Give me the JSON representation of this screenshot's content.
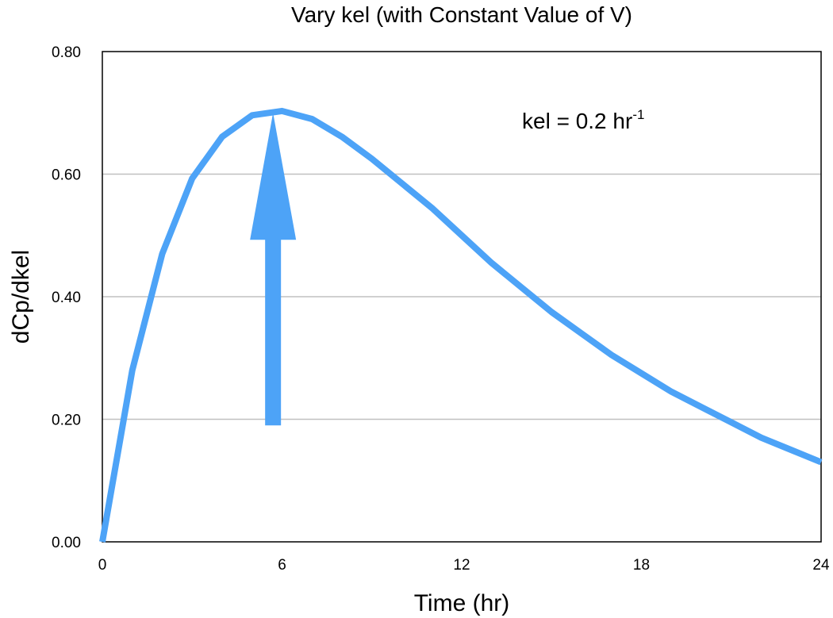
{
  "chart_data": {
    "type": "line",
    "title": "Vary kel (with Constant Value of V)",
    "xlabel": "Time (hr)",
    "ylabel": "dCp/dkel",
    "xlim": [
      0,
      24
    ],
    "ylim": [
      0,
      0.8
    ],
    "xticks": [
      0,
      6,
      12,
      18,
      24
    ],
    "xtick_labels": [
      "0",
      "6",
      "12",
      "18",
      "24"
    ],
    "yticks": [
      0,
      0.2,
      0.4,
      0.6,
      0.8
    ],
    "ytick_labels": [
      "0.00",
      "0.20",
      "0.40",
      "0.60",
      "0.80"
    ],
    "grid": "horizontal",
    "legend": "none",
    "series": [
      {
        "color": "#4da3f7",
        "x": [
          0,
          1,
          2,
          3,
          4,
          5,
          6,
          7,
          8,
          9,
          10,
          11,
          12,
          13,
          14,
          15,
          16,
          17,
          18,
          19,
          20,
          21,
          22,
          23,
          24
        ],
        "y": [
          0,
          0.28,
          0.47,
          0.593,
          0.661,
          0.696,
          0.703,
          0.69,
          0.661,
          0.625,
          0.585,
          0.545,
          0.5,
          0.455,
          0.415,
          0.375,
          0.34,
          0.305,
          0.275,
          0.245,
          0.22,
          0.195,
          0.17,
          0.15,
          0.13
        ]
      }
    ],
    "annotations": {
      "text_main": "kel = 0.2 hr",
      "text_sup": "-1",
      "arrow": {
        "x": 5.7,
        "y_from": 0.19,
        "y_to": 0.7,
        "color": "#4da3f7"
      }
    }
  }
}
